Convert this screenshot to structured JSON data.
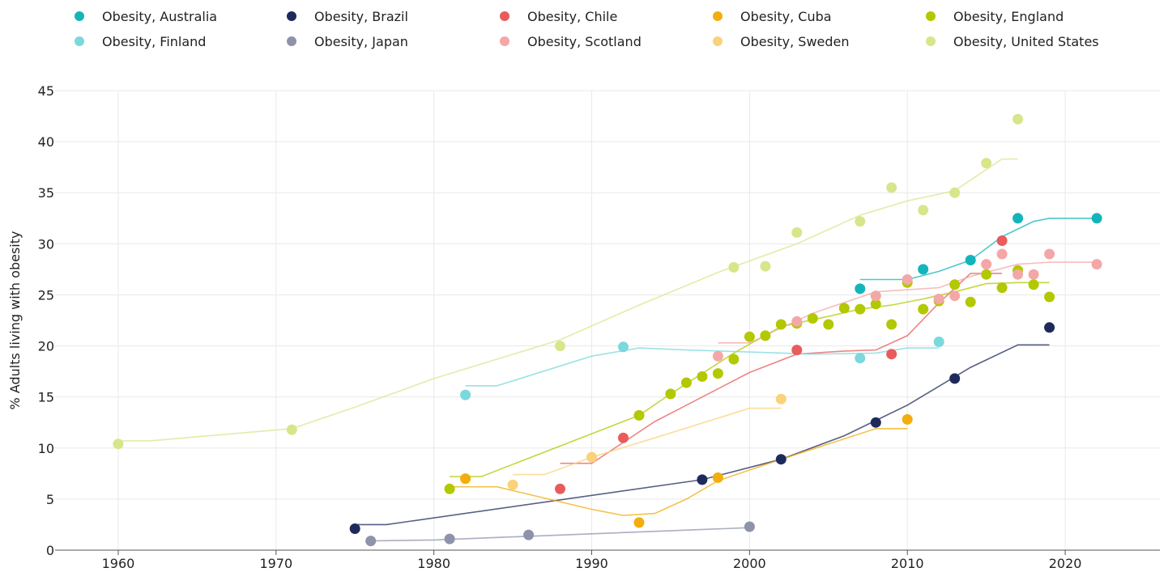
{
  "chart_data": {
    "type": "scatter",
    "title": "",
    "xlabel": "",
    "ylabel": "% Adults living with obesity",
    "xlim": [
      1956,
      2026
    ],
    "ylim": [
      0,
      45
    ],
    "xticks": [
      1960,
      1970,
      1980,
      1990,
      2000,
      2010,
      2020
    ],
    "yticks": [
      0,
      5,
      10,
      15,
      20,
      25,
      30,
      35,
      40,
      45
    ],
    "grid": true,
    "legend_position": "top",
    "series": [
      {
        "name": "Obesity, Australia",
        "color": "#13B5BA",
        "points": [
          [
            2007,
            25.6
          ],
          [
            2011,
            27.5
          ],
          [
            2014,
            28.4
          ],
          [
            2017,
            32.5
          ],
          [
            2022,
            32.5
          ]
        ],
        "trend": [
          [
            2007,
            26.5
          ],
          [
            2010,
            26.5
          ],
          [
            2012,
            27.3
          ],
          [
            2014,
            28.4
          ],
          [
            2016,
            30.7
          ],
          [
            2018,
            32.2
          ],
          [
            2019,
            32.5
          ],
          [
            2022,
            32.5
          ]
        ]
      },
      {
        "name": "Obesity, Brazil",
        "color": "#1F2A5C",
        "points": [
          [
            1975,
            2.1
          ],
          [
            1997,
            6.9
          ],
          [
            2002,
            8.9
          ],
          [
            2008,
            12.5
          ],
          [
            2013,
            16.8
          ],
          [
            2019,
            21.8
          ]
        ],
        "trend": [
          [
            1975,
            2.5
          ],
          [
            1977,
            2.5
          ],
          [
            1997,
            6.9
          ],
          [
            2002,
            8.9
          ],
          [
            2006,
            11.2
          ],
          [
            2010,
            14.2
          ],
          [
            2014,
            17.9
          ],
          [
            2017,
            20.1
          ],
          [
            2019,
            20.1
          ]
        ]
      },
      {
        "name": "Obesity, Chile",
        "color": "#E85C5C",
        "points": [
          [
            1988,
            6.0
          ],
          [
            1992,
            11.0
          ],
          [
            2003,
            19.6
          ],
          [
            2009,
            19.2
          ],
          [
            2016,
            30.3
          ]
        ],
        "trend": [
          [
            1988,
            8.5
          ],
          [
            1990,
            8.5
          ],
          [
            1994,
            12.6
          ],
          [
            2000,
            17.4
          ],
          [
            2003,
            19.2
          ],
          [
            2006,
            19.5
          ],
          [
            2008,
            19.6
          ],
          [
            2010,
            21.0
          ],
          [
            2012,
            24.2
          ],
          [
            2014,
            27.1
          ],
          [
            2016,
            27.1
          ]
        ]
      },
      {
        "name": "Obesity, Cuba",
        "color": "#F2AE0C",
        "points": [
          [
            1982,
            7.0
          ],
          [
            1993,
            2.7
          ],
          [
            1998,
            7.1
          ],
          [
            2010,
            12.8
          ]
        ],
        "trend": [
          [
            1981,
            6.2
          ],
          [
            1984,
            6.2
          ],
          [
            1990,
            4.0
          ],
          [
            1992,
            3.4
          ],
          [
            1994,
            3.6
          ],
          [
            1996,
            5.0
          ],
          [
            1998,
            6.8
          ],
          [
            2002,
            8.9
          ],
          [
            2008,
            11.9
          ],
          [
            2010,
            11.9
          ]
        ]
      },
      {
        "name": "Obesity, England",
        "color": "#B2C800",
        "points": [
          [
            1981,
            6.0
          ],
          [
            1993,
            13.2
          ],
          [
            1995,
            15.3
          ],
          [
            1996,
            16.4
          ],
          [
            1997,
            17.0
          ],
          [
            1998,
            17.3
          ],
          [
            1999,
            18.7
          ],
          [
            2000,
            20.9
          ],
          [
            2001,
            21.0
          ],
          [
            2002,
            22.1
          ],
          [
            2003,
            22.2
          ],
          [
            2004,
            22.7
          ],
          [
            2005,
            22.1
          ],
          [
            2006,
            23.7
          ],
          [
            2007,
            23.6
          ],
          [
            2008,
            24.1
          ],
          [
            2009,
            22.1
          ],
          [
            2010,
            26.2
          ],
          [
            2011,
            23.6
          ],
          [
            2012,
            24.4
          ],
          [
            2013,
            26.0
          ],
          [
            2014,
            24.3
          ],
          [
            2015,
            27.0
          ],
          [
            2016,
            25.7
          ],
          [
            2017,
            27.4
          ],
          [
            2018,
            26.0
          ],
          [
            2019,
            24.8
          ]
        ],
        "trend": [
          [
            1981,
            7.2
          ],
          [
            1983,
            7.2
          ],
          [
            1993,
            13.2
          ],
          [
            1995,
            15.3
          ],
          [
            1999,
            19.3
          ],
          [
            2002,
            21.9
          ],
          [
            2005,
            22.9
          ],
          [
            2007,
            23.6
          ],
          [
            2009,
            24.0
          ],
          [
            2011,
            24.6
          ],
          [
            2013,
            25.3
          ],
          [
            2015,
            26.1
          ],
          [
            2017,
            26.2
          ],
          [
            2019,
            26.2
          ]
        ]
      },
      {
        "name": "Obesity, Finland",
        "color": "#7BD8DC",
        "points": [
          [
            1982,
            15.2
          ],
          [
            1992,
            19.9
          ],
          [
            2007,
            18.8
          ],
          [
            2012,
            20.4
          ]
        ],
        "trend": [
          [
            1982,
            16.1
          ],
          [
            1984,
            16.1
          ],
          [
            1990,
            19.0
          ],
          [
            1993,
            19.8
          ],
          [
            1996,
            19.6
          ],
          [
            2000,
            19.4
          ],
          [
            2004,
            19.2
          ],
          [
            2008,
            19.3
          ],
          [
            2010,
            19.8
          ],
          [
            2012,
            19.8
          ]
        ]
      },
      {
        "name": "Obesity, Japan",
        "color": "#8E93AB",
        "points": [
          [
            1976,
            0.9
          ],
          [
            1981,
            1.1
          ],
          [
            1986,
            1.5
          ],
          [
            2000,
            2.3
          ]
        ],
        "trend": [
          [
            1976,
            0.9
          ],
          [
            1980,
            1.0
          ],
          [
            1990,
            1.6
          ],
          [
            2000,
            2.2
          ]
        ]
      },
      {
        "name": "Obesity, Scotland",
        "color": "#F4A7A7",
        "points": [
          [
            1998,
            19.0
          ],
          [
            2003,
            22.4
          ],
          [
            2008,
            24.9
          ],
          [
            2010,
            26.5
          ],
          [
            2012,
            24.6
          ],
          [
            2013,
            24.9
          ],
          [
            2015,
            28.0
          ],
          [
            2016,
            29.0
          ],
          [
            2017,
            27.0
          ],
          [
            2018,
            27.0
          ],
          [
            2019,
            29.0
          ],
          [
            2022,
            28.0
          ]
        ],
        "trend": [
          [
            1998,
            20.3
          ],
          [
            2000,
            20.3
          ],
          [
            2004,
            23.2
          ],
          [
            2008,
            25.3
          ],
          [
            2012,
            25.7
          ],
          [
            2014,
            26.8
          ],
          [
            2017,
            28.0
          ],
          [
            2019,
            28.2
          ],
          [
            2022,
            28.2
          ]
        ]
      },
      {
        "name": "Obesity, Sweden",
        "color": "#F9D27A",
        "points": [
          [
            1985,
            6.4
          ],
          [
            1990,
            9.1
          ],
          [
            2002,
            14.8
          ]
        ],
        "trend": [
          [
            1985,
            7.4
          ],
          [
            1987,
            7.4
          ],
          [
            1990,
            9.1
          ],
          [
            1994,
            11.0
          ],
          [
            2000,
            13.9
          ],
          [
            2002,
            13.9
          ]
        ]
      },
      {
        "name": "Obesity, United States",
        "color": "#D9E58A",
        "points": [
          [
            1960,
            10.4
          ],
          [
            1971,
            11.8
          ],
          [
            1988,
            20.0
          ],
          [
            1999,
            27.7
          ],
          [
            2001,
            27.8
          ],
          [
            2003,
            31.1
          ],
          [
            2007,
            32.2
          ],
          [
            2009,
            35.5
          ],
          [
            2011,
            33.3
          ],
          [
            2013,
            35.0
          ],
          [
            2015,
            37.9
          ],
          [
            2017,
            42.2
          ]
        ],
        "trend": [
          [
            1960,
            10.7
          ],
          [
            1962,
            10.7
          ],
          [
            1971,
            11.9
          ],
          [
            1975,
            14.0
          ],
          [
            1980,
            16.8
          ],
          [
            1988,
            20.6
          ],
          [
            1993,
            24.0
          ],
          [
            1998,
            27.2
          ],
          [
            2003,
            30.0
          ],
          [
            2007,
            32.8
          ],
          [
            2010,
            34.2
          ],
          [
            2013,
            35.2
          ],
          [
            2016,
            38.3
          ],
          [
            2017,
            38.3
          ]
        ]
      }
    ]
  }
}
